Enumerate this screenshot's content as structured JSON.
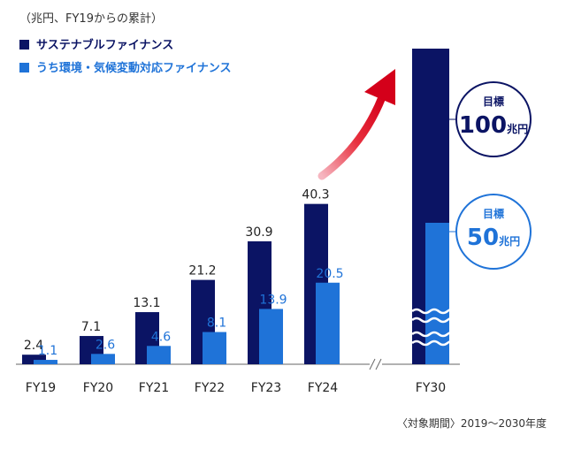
{
  "chart_data": {
    "type": "bar",
    "unit_note": "（兆円、FY19からの累計）",
    "categories": [
      "FY19",
      "FY20",
      "FY21",
      "FY22",
      "FY23",
      "FY24"
    ],
    "series": [
      {
        "name": "サステナブルファイナンス",
        "color": "#0b1464",
        "values": [
          2.4,
          7.1,
          13.1,
          21.2,
          30.9,
          40.3
        ],
        "labels": [
          "2.4",
          "7.1",
          "13.1",
          "21.2",
          "30.9",
          "40.3"
        ]
      },
      {
        "name": "うち環境・気候変動対応ファイナンス",
        "color": "#1f73d8",
        "values": [
          1.1,
          2.6,
          4.6,
          8.1,
          13.9,
          20.5
        ],
        "labels": [
          "1.1",
          "2.6",
          "4.6",
          "8.1",
          "13.9",
          "20.5"
        ]
      }
    ],
    "target": {
      "category": "FY30",
      "sustainable": {
        "value": 100,
        "label_top": "目標",
        "label_num": "100",
        "label_unit": "兆円"
      },
      "environmental": {
        "value": 50,
        "label_top": "目標",
        "label_num": "50",
        "label_unit": "兆円"
      }
    },
    "ylim": [
      0,
      120
    ],
    "axis_break": true,
    "period_note": "〈対象期間〉2019〜2030年度"
  }
}
